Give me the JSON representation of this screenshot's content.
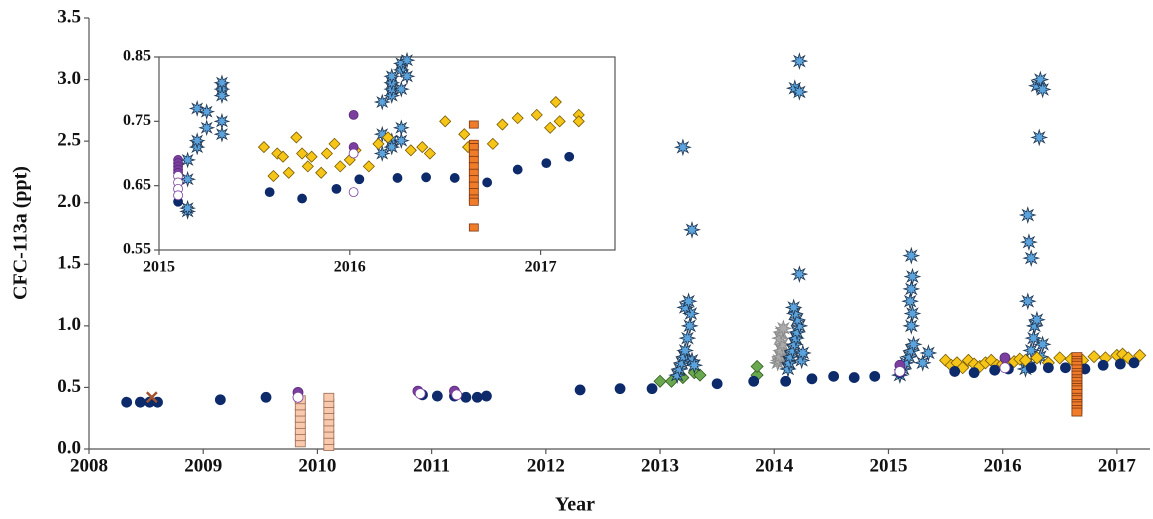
{
  "chart_data": [
    {
      "type": "scatter",
      "x_label": "Year",
      "y_label": "CFC-113a (ppt)",
      "xlim": [
        2008,
        2017.29
      ],
      "ylim": [
        0,
        3.5
      ],
      "xticks": [
        2008,
        2009,
        2010,
        2011,
        2012,
        2013,
        2014,
        2015,
        2016,
        2017
      ],
      "yticks": [
        {
          "value": 0,
          "label": "0.0"
        },
        0.5,
        {
          "value": 1,
          "label": "1.0"
        },
        1.5,
        {
          "value": 2,
          "label": "2.0"
        },
        2.5,
        {
          "value": 3,
          "label": "3.0"
        },
        3.5
      ],
      "series": [
        {
          "marker": "square",
          "color": "#f8c9ad",
          "edge": "#9a6a50",
          "x": [
            2009.85,
            2009.85,
            2009.85,
            2009.85,
            2009.85,
            2009.85,
            2009.85,
            2009.85,
            2010.1,
            2010.1,
            2010.1,
            2010.1,
            2010.1,
            2010.1,
            2010.1,
            2010.1,
            2010.1
          ],
          "values": [
            0.05,
            0.1,
            0.15,
            0.2,
            0.25,
            0.3,
            0.35,
            0.4,
            0.02,
            0.07,
            0.12,
            0.17,
            0.22,
            0.27,
            0.32,
            0.37,
            0.42
          ]
        },
        {
          "marker": "diamond",
          "color": "#6aa84f",
          "edge": "#2f5a1f",
          "x": [
            2013.0,
            2013.1,
            2013.2,
            2013.3,
            2013.35,
            2013.85,
            2013.85
          ],
          "values": [
            0.55,
            0.55,
            0.58,
            0.62,
            0.6,
            0.6,
            0.67
          ]
        },
        {
          "marker": "star",
          "color": "#aaaaaa",
          "edge": "#888888",
          "x": [
            2014.03,
            2014.04,
            2014.05,
            2014.06,
            2014.07,
            2014.05,
            2014.06,
            2014.08
          ],
          "values": [
            0.7,
            0.72,
            0.75,
            0.8,
            0.85,
            0.9,
            0.95,
            0.98
          ]
        },
        {
          "marker": "star",
          "color": "#5ba3dc",
          "edge": "#1f3550",
          "x": [
            2013.15,
            2013.17,
            2013.19,
            2013.21,
            2013.22,
            2013.24,
            2013.26,
            2013.27,
            2013.22,
            2013.25,
            2013.28,
            2013.3,
            2013.2,
            2013.28,
            2014.12,
            2014.13,
            2014.14,
            2014.16,
            2014.18,
            2014.19,
            2014.2,
            2014.22,
            2014.2,
            2014.18,
            2014.17,
            2014.24,
            2014.25,
            2014.18,
            2014.22,
            2014.22,
            2014.22,
            2015.1,
            2015.13,
            2015.15,
            2015.18,
            2015.2,
            2015.22,
            2015.2,
            2015.21,
            2015.19,
            2015.2,
            2015.21,
            2015.2,
            2015.3,
            2015.35,
            2016.2,
            2016.22,
            2016.25,
            2016.27,
            2016.28,
            2016.3,
            2016.22,
            2016.25,
            2016.23,
            2016.22,
            2016.3,
            2016.33,
            2016.35,
            2016.32,
            2016.33,
            2016.35
          ],
          "values": [
            0.6,
            0.65,
            0.7,
            0.75,
            0.8,
            0.9,
            1.0,
            1.1,
            1.15,
            1.2,
            0.72,
            0.68,
            2.45,
            1.78,
            0.65,
            0.7,
            0.75,
            0.8,
            0.85,
            0.9,
            0.95,
            1.0,
            1.05,
            1.1,
            1.15,
            0.72,
            0.78,
            2.93,
            2.9,
            3.15,
            1.42,
            0.6,
            0.65,
            0.7,
            0.75,
            0.8,
            0.85,
            1.0,
            1.1,
            1.2,
            1.3,
            1.4,
            1.57,
            0.7,
            0.78,
            0.65,
            0.7,
            0.8,
            0.9,
            1.0,
            1.05,
            1.2,
            1.55,
            1.68,
            1.9,
            2.95,
            3.0,
            2.92,
            2.53,
            0.75,
            0.85
          ]
        },
        {
          "marker": "diamond",
          "color": "#f5c518",
          "edge": "#7a5a00",
          "x": [
            2015.5,
            2015.55,
            2015.6,
            2015.65,
            2015.7,
            2015.75,
            2015.8,
            2015.85,
            2015.9,
            2015.95,
            2016.0,
            2016.05,
            2016.1,
            2016.15,
            2016.2,
            2016.3,
            2016.4,
            2016.5,
            2016.6,
            2016.7,
            2016.8,
            2016.9,
            2017.0,
            2017.05,
            2017.1,
            2017.2
          ],
          "values": [
            0.72,
            0.68,
            0.7,
            0.66,
            0.72,
            0.69,
            0.67,
            0.7,
            0.72,
            0.68,
            0.69,
            0.7,
            0.71,
            0.73,
            0.72,
            0.74,
            0.7,
            0.74,
            0.73,
            0.72,
            0.75,
            0.74,
            0.76,
            0.77,
            0.74,
            0.76
          ]
        },
        {
          "marker": "circle",
          "color": "#0d2a6b",
          "edge": "#0d2a6b",
          "x": [
            2008.33,
            2008.45,
            2008.53,
            2008.6,
            2009.15,
            2009.55,
            2010.92,
            2011.05,
            2011.2,
            2011.3,
            2011.4,
            2011.48,
            2012.3,
            2012.65,
            2012.93,
            2013.5,
            2013.82,
            2014.1,
            2014.33,
            2014.52,
            2014.7,
            2014.88,
            2015.1,
            2015.58,
            2015.75,
            2015.93,
            2016.05,
            2016.25,
            2016.4,
            2016.55,
            2016.72,
            2016.88,
            2017.03,
            2017.15
          ],
          "values": [
            0.38,
            0.38,
            0.38,
            0.38,
            0.4,
            0.42,
            0.44,
            0.43,
            0.43,
            0.42,
            0.42,
            0.43,
            0.48,
            0.49,
            0.49,
            0.53,
            0.55,
            0.55,
            0.57,
            0.59,
            0.58,
            0.59,
            0.62,
            0.63,
            0.62,
            0.64,
            0.65,
            0.66,
            0.66,
            0.66,
            0.65,
            0.68,
            0.69,
            0.7
          ]
        },
        {
          "marker": "circle",
          "color": "#7b3fa0",
          "edge": "#5a2a7a",
          "x": [
            2009.83,
            2010.88,
            2011.2,
            2015.1,
            2016.02
          ],
          "values": [
            0.46,
            0.47,
            0.47,
            0.68,
            0.74
          ]
        },
        {
          "marker": "circle",
          "color": "#ffffff",
          "edge": "#7b3fa0",
          "x": [
            2009.83,
            2010.9,
            2011.22,
            2015.1,
            2016.02
          ],
          "values": [
            0.42,
            0.45,
            0.44,
            0.63,
            0.66
          ]
        },
        {
          "marker": "cross",
          "color": "#a0522d",
          "edge": "#a0522d",
          "x": [
            2008.55
          ],
          "values": [
            0.42
          ]
        },
        {
          "marker": "square",
          "color": "#f07c2a",
          "edge": "#7a3510",
          "x": [
            2016.65,
            2016.65,
            2016.65,
            2016.65,
            2016.65,
            2016.65,
            2016.65,
            2016.65,
            2016.65,
            2016.65,
            2016.65,
            2016.65,
            2016.65,
            2016.65,
            2016.65,
            2016.65,
            2016.65,
            2016.65,
            2016.65
          ],
          "values": [
            0.75,
            0.72,
            0.7,
            0.68,
            0.65,
            0.62,
            0.6,
            0.57,
            0.55,
            0.52,
            0.5,
            0.48,
            0.45,
            0.42,
            0.4,
            0.37,
            0.35,
            0.32,
            0.3
          ]
        }
      ]
    },
    {
      "type": "scatter",
      "xlim": [
        2015,
        2017.39
      ],
      "ylim": [
        0.55,
        0.85
      ],
      "xticks": [
        2015,
        2016,
        2017
      ],
      "yticks": [
        0.55,
        0.65,
        0.75,
        0.85
      ],
      "series": [
        {
          "marker": "star",
          "color": "#5ba3dc",
          "edge": "#1f3550",
          "x": [
            2015.15,
            2015.15,
            2015.15,
            2015.15,
            2015.2,
            2015.2,
            2015.2,
            2015.25,
            2015.25,
            2015.33,
            2015.33,
            2015.33,
            2015.33,
            2015.33,
            2016.17,
            2016.17,
            2016.17,
            2016.22,
            2016.22,
            2016.22,
            2016.22,
            2016.22,
            2016.22,
            2016.27,
            2016.27,
            2016.27,
            2016.27,
            2016.27,
            2016.3,
            2016.3
          ],
          "values": [
            0.61,
            0.615,
            0.66,
            0.69,
            0.77,
            0.71,
            0.72,
            0.765,
            0.74,
            0.8,
            0.81,
            0.79,
            0.75,
            0.73,
            0.7,
            0.73,
            0.78,
            0.79,
            0.8,
            0.81,
            0.82,
            0.72,
            0.71,
            0.83,
            0.84,
            0.8,
            0.74,
            0.72,
            0.845,
            0.82
          ]
        },
        {
          "marker": "diamond",
          "color": "#f5c518",
          "edge": "#7a5a00",
          "x": [
            2015.55,
            2015.6,
            2015.62,
            2015.65,
            2015.68,
            2015.72,
            2015.75,
            2015.78,
            2015.8,
            2015.85,
            2015.88,
            2015.92,
            2015.95,
            2016.0,
            2016.03,
            2016.1,
            2016.15,
            2016.2,
            2016.32,
            2016.38,
            2016.42,
            2016.5,
            2016.6,
            2016.62,
            2016.75,
            2016.8,
            2016.88,
            2016.98,
            2017.05,
            2017.08,
            2017.1,
            2017.2,
            2017.2
          ],
          "values": [
            0.71,
            0.665,
            0.7,
            0.695,
            0.67,
            0.725,
            0.7,
            0.68,
            0.695,
            0.67,
            0.7,
            0.715,
            0.68,
            0.69,
            0.705,
            0.68,
            0.715,
            0.725,
            0.705,
            0.71,
            0.7,
            0.75,
            0.73,
            0.71,
            0.715,
            0.745,
            0.755,
            0.76,
            0.74,
            0.78,
            0.75,
            0.76,
            0.75
          ]
        },
        {
          "marker": "circle",
          "color": "#0d2a6b",
          "edge": "#0d2a6b",
          "x": [
            2015.1,
            2015.58,
            2015.75,
            2015.93,
            2016.05,
            2016.25,
            2016.4,
            2016.55,
            2016.72,
            2016.88,
            2017.03,
            2017.15
          ],
          "values": [
            0.625,
            0.64,
            0.63,
            0.645,
            0.66,
            0.662,
            0.663,
            0.662,
            0.655,
            0.675,
            0.685,
            0.695
          ]
        },
        {
          "marker": "circle",
          "color": "#7b3fa0",
          "edge": "#5a2a7a",
          "x": [
            2015.1,
            2015.1,
            2015.1,
            2015.1,
            2015.1,
            2016.02,
            2016.02
          ],
          "values": [
            0.69,
            0.685,
            0.68,
            0.675,
            0.67,
            0.76,
            0.71
          ]
        },
        {
          "marker": "circle",
          "color": "#ffffff",
          "edge": "#7b3fa0",
          "x": [
            2015.1,
            2015.1,
            2015.1,
            2015.1,
            2016.02,
            2016.02
          ],
          "values": [
            0.665,
            0.655,
            0.645,
            0.635,
            0.7,
            0.64
          ]
        },
        {
          "marker": "square",
          "color": "#f07c2a",
          "edge": "#7a3510",
          "x": [
            2016.65,
            2016.65,
            2016.65,
            2016.65,
            2016.65,
            2016.65,
            2016.65,
            2016.65,
            2016.65,
            2016.65,
            2016.65,
            2016.65,
            2016.65
          ],
          "values": [
            0.745,
            0.715,
            0.71,
            0.7,
            0.69,
            0.68,
            0.67,
            0.66,
            0.65,
            0.64,
            0.63,
            0.625,
            0.585
          ]
        }
      ]
    }
  ]
}
